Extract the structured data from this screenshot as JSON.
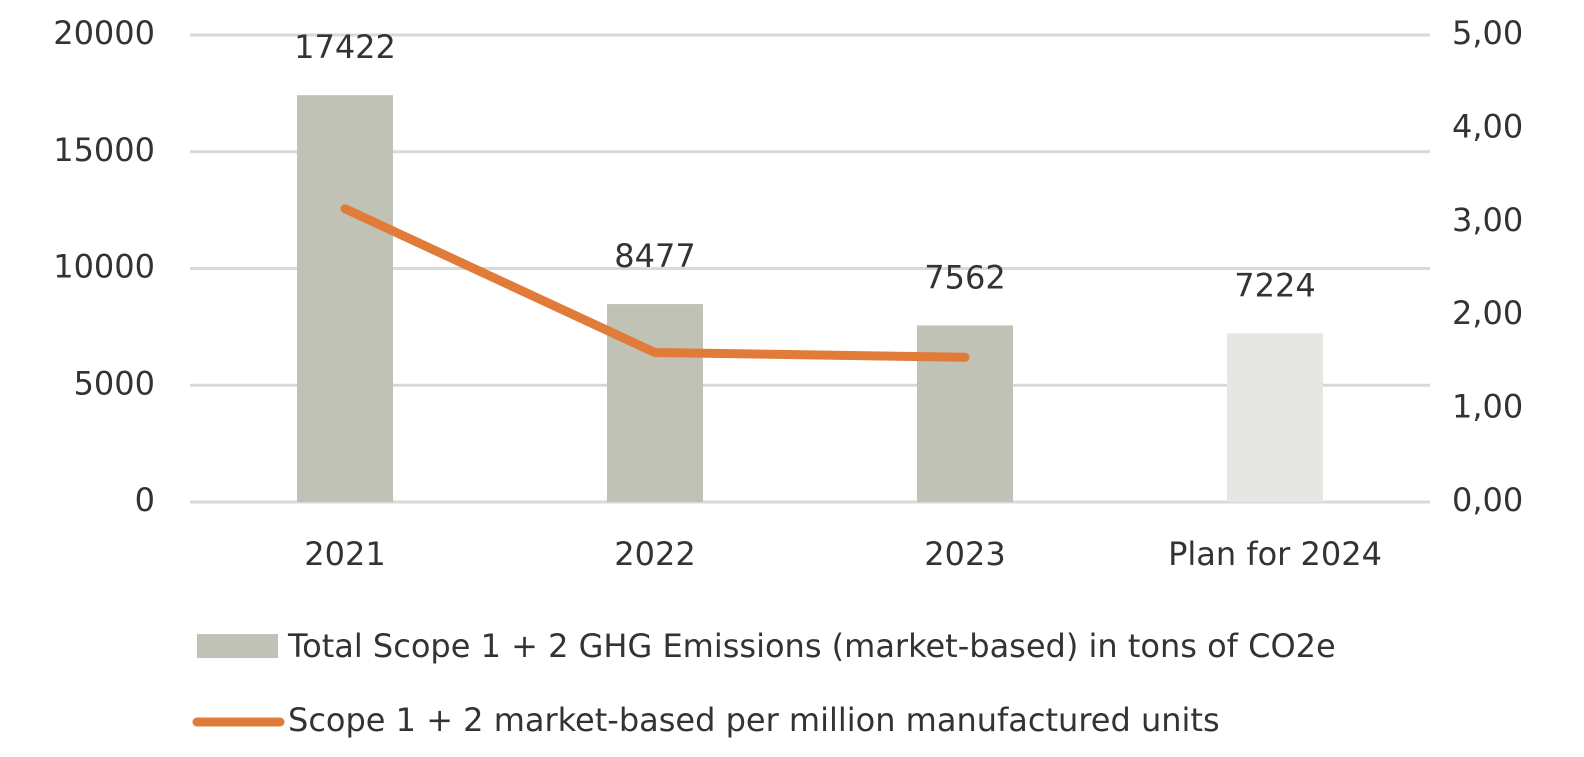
{
  "chart_data": {
    "type": "bar-line",
    "categories": [
      "2021",
      "2022",
      "2023",
      "Plan for 2024"
    ],
    "series": [
      {
        "name": "Total Scope 1 + 2 GHG Emissions (market-based) in tons of CO2e",
        "type": "bar",
        "color": "#c0c2b5",
        "colors": [
          "#c0c2b5",
          "#c0c2b5",
          "#c0c2b5",
          "#e6e7e2"
        ],
        "values": [
          17422,
          8477,
          7562,
          7224
        ]
      },
      {
        "name": "Scope 1 + 2 market-based per million manufactured units",
        "type": "line",
        "axis": "y2",
        "color": "#e07b39",
        "values": [
          3.14,
          1.6,
          1.55,
          null
        ]
      }
    ],
    "ylim": [
      0,
      20000
    ],
    "yticks": [
      0,
      5000,
      10000,
      15000,
      20000
    ],
    "y2lim": [
      0,
      5
    ],
    "y2ticks": [
      {
        "value": 0,
        "label": "0,00"
      },
      {
        "value": 1,
        "label": "1,00"
      },
      {
        "value": 2,
        "label": "2,00"
      },
      {
        "value": 3,
        "label": "3,00"
      },
      {
        "value": 4,
        "label": "4,00"
      },
      {
        "value": 5,
        "label": "5,00"
      }
    ],
    "grid": true,
    "legend": "bottom"
  }
}
